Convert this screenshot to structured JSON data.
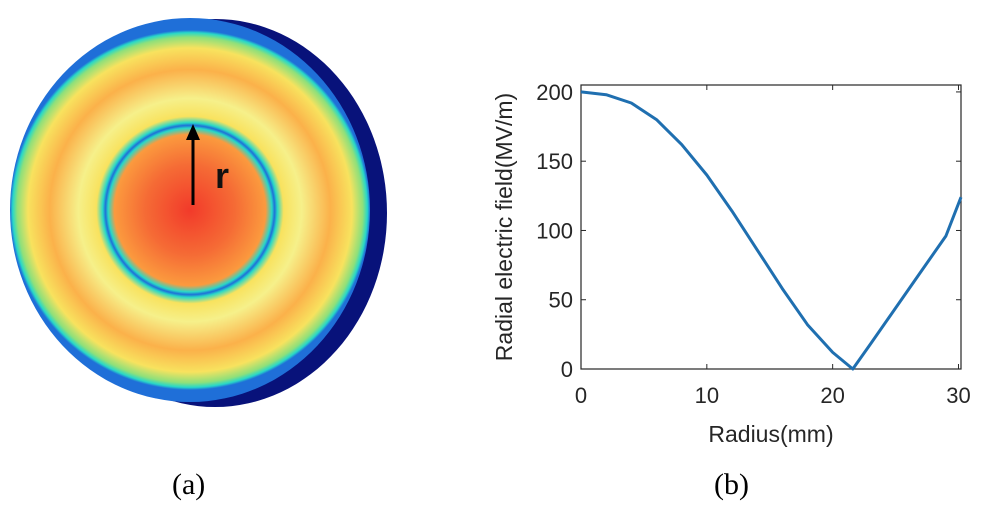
{
  "panel_a": {
    "caption": "(a)",
    "radius_label": "r",
    "colors": {
      "center": "#f23a2a",
      "orange": "#fb9a3e",
      "yellow": "#f8e25e",
      "light_yellow": "#f6f08a",
      "cyan": "#28d8c8",
      "blue_ring": "#1f6fd8",
      "edge_blue": "#0a1070",
      "shadow": "#08127a"
    }
  },
  "panel_b": {
    "caption": "(b)"
  },
  "chart_data": {
    "type": "line",
    "title": "",
    "xlabel": "Radius(mm)",
    "ylabel": "Radial electric field(MV/m)",
    "xlim": [
      0,
      30.2
    ],
    "ylim": [
      0,
      205
    ],
    "xticks": [
      0,
      10,
      20,
      30
    ],
    "yticks": [
      0,
      50,
      100,
      150,
      200
    ],
    "grid": false,
    "line_color": "#1f6fb0",
    "series": [
      {
        "x": [
          0,
          2,
          4,
          6,
          8,
          10,
          12,
          14,
          16,
          18,
          20,
          21.6,
          23,
          25,
          27,
          29,
          30.2
        ],
        "values": [
          200,
          198,
          192,
          180,
          162,
          140,
          114,
          86,
          58,
          32,
          12,
          0,
          18,
          44,
          70,
          96,
          124
        ]
      }
    ]
  }
}
